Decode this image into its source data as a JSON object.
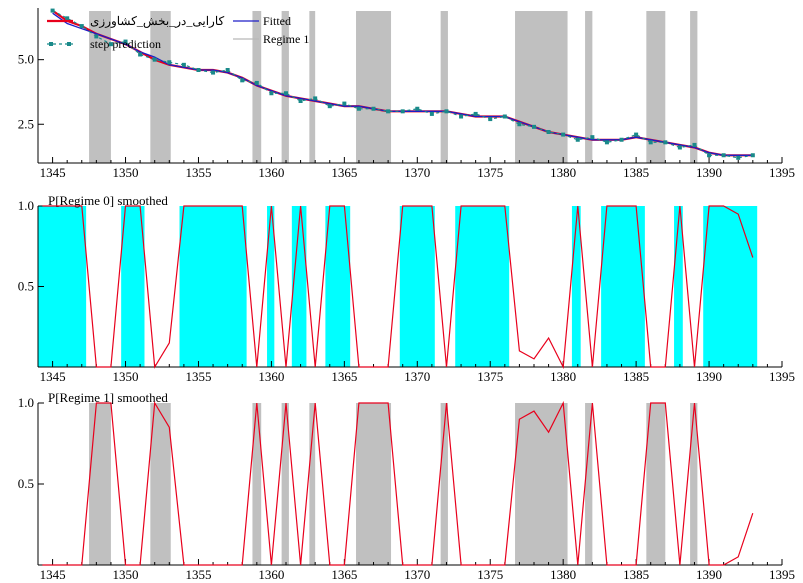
{
  "chart_data": [
    {
      "type": "line",
      "title": "",
      "xlabel": "",
      "ylabel": "",
      "xlim": [
        1344,
        1395
      ],
      "ylim": [
        1.0,
        7.0
      ],
      "x_ticks": [
        1345,
        1350,
        1355,
        1360,
        1365,
        1370,
        1375,
        1380,
        1385,
        1390,
        1395
      ],
      "y_ticks": [
        2.5,
        5.0
      ],
      "y_tick_labels": [
        "2.5",
        "5.0"
      ],
      "x_tick_labels": [
        "1345",
        "1350",
        "1355",
        "1360",
        "1365",
        "1370",
        "1375",
        "1380",
        "1385",
        "1390",
        "1395"
      ],
      "legend": [
        "کارایی_در_بخش_کشاورزی",
        "Fitted",
        "step prediction",
        "Regime 1"
      ],
      "colors": {
        "actual": "#e8001c",
        "fitted": "#1d1dc8",
        "step": "#1a8a8a",
        "regime": "#c0c0c0"
      },
      "regime1_intervals": [
        [
          1347.5,
          1349
        ],
        [
          1351.7,
          1353.1
        ],
        [
          1358.7,
          1359.3
        ],
        [
          1360.7,
          1361.2
        ],
        [
          1362.6,
          1363
        ],
        [
          1365.8,
          1368.2
        ],
        [
          1371.6,
          1372.1
        ],
        [
          1376.7,
          1380.3
        ],
        [
          1381.5,
          1382
        ],
        [
          1385.7,
          1387
        ],
        [
          1388.7,
          1389.2
        ]
      ],
      "series": [
        {
          "name": "کارایی_در_بخش_کشاورزی",
          "x": [
            1345,
            1346,
            1347,
            1348,
            1349,
            1350,
            1351,
            1352,
            1353,
            1354,
            1355,
            1356,
            1357,
            1358,
            1359,
            1360,
            1361,
            1362,
            1363,
            1364,
            1365,
            1366,
            1367,
            1368,
            1369,
            1370,
            1371,
            1372,
            1373,
            1374,
            1375,
            1376,
            1377,
            1378,
            1379,
            1380,
            1381,
            1382,
            1383,
            1384,
            1385,
            1386,
            1387,
            1388,
            1389,
            1390,
            1391,
            1392,
            1393
          ],
          "y": [
            6.9,
            6.5,
            6.3,
            6.0,
            5.8,
            5.6,
            5.3,
            5.0,
            4.8,
            4.7,
            4.6,
            4.6,
            4.5,
            4.3,
            4.0,
            3.8,
            3.6,
            3.5,
            3.4,
            3.3,
            3.2,
            3.2,
            3.1,
            3.0,
            3.0,
            3.0,
            3.0,
            3.0,
            2.9,
            2.8,
            2.8,
            2.8,
            2.6,
            2.4,
            2.2,
            2.1,
            2.0,
            1.9,
            1.9,
            1.9,
            2.0,
            1.9,
            1.8,
            1.7,
            1.6,
            1.4,
            1.3,
            1.3,
            1.3
          ]
        },
        {
          "name": "Fitted",
          "x": [
            1345,
            1346,
            1347,
            1348,
            1349,
            1350,
            1351,
            1352,
            1353,
            1354,
            1355,
            1356,
            1357,
            1358,
            1359,
            1360,
            1361,
            1362,
            1363,
            1364,
            1365,
            1366,
            1367,
            1368,
            1369,
            1370,
            1371,
            1372,
            1373,
            1374,
            1375,
            1376,
            1377,
            1378,
            1379,
            1380,
            1381,
            1382,
            1383,
            1384,
            1385,
            1386,
            1387,
            1388,
            1389,
            1390,
            1391,
            1392,
            1393
          ],
          "y": [
            6.8,
            6.4,
            6.2,
            6.0,
            5.8,
            5.6,
            5.3,
            5.1,
            4.8,
            4.7,
            4.6,
            4.6,
            4.5,
            4.3,
            4.0,
            3.8,
            3.6,
            3.5,
            3.4,
            3.3,
            3.2,
            3.2,
            3.1,
            3.0,
            3.0,
            3.0,
            3.0,
            3.0,
            2.9,
            2.8,
            2.8,
            2.8,
            2.6,
            2.4,
            2.2,
            2.1,
            2.0,
            1.9,
            1.9,
            1.9,
            2.0,
            1.9,
            1.8,
            1.7,
            1.6,
            1.4,
            1.3,
            1.3,
            1.3
          ]
        },
        {
          "name": "step prediction",
          "x": [
            1345,
            1346,
            1347,
            1348,
            1349,
            1350,
            1351,
            1352,
            1353,
            1354,
            1355,
            1356,
            1357,
            1358,
            1359,
            1360,
            1361,
            1362,
            1363,
            1364,
            1365,
            1366,
            1367,
            1368,
            1369,
            1370,
            1371,
            1372,
            1373,
            1374,
            1375,
            1376,
            1377,
            1378,
            1379,
            1380,
            1381,
            1382,
            1383,
            1384,
            1385,
            1386,
            1387,
            1388,
            1389,
            1390,
            1391,
            1392,
            1393
          ],
          "y": [
            6.9,
            6.6,
            6.3,
            5.9,
            5.6,
            5.7,
            5.2,
            5.0,
            4.9,
            4.8,
            4.6,
            4.5,
            4.6,
            4.2,
            4.1,
            3.7,
            3.7,
            3.4,
            3.5,
            3.2,
            3.3,
            3.1,
            3.1,
            3.0,
            3.0,
            3.1,
            2.9,
            3.0,
            2.8,
            2.9,
            2.7,
            2.8,
            2.5,
            2.4,
            2.2,
            2.1,
            1.9,
            2.0,
            1.8,
            1.9,
            2.1,
            1.8,
            1.8,
            1.6,
            1.7,
            1.3,
            1.3,
            1.2,
            1.3
          ]
        }
      ]
    },
    {
      "type": "line",
      "title": "P[Regime 0] smoothed",
      "xlabel": "",
      "ylabel": "",
      "xlim": [
        1344,
        1395
      ],
      "ylim": [
        0,
        1
      ],
      "x_ticks": [
        1345,
        1350,
        1355,
        1360,
        1365,
        1370,
        1375,
        1380,
        1385,
        1390,
        1395
      ],
      "x_tick_labels": [
        "1345",
        "1350",
        "1355",
        "1360",
        "1365",
        "1370",
        "1375",
        "1380",
        "1385",
        "1390",
        "1395"
      ],
      "y_ticks": [
        0.5,
        1.0
      ],
      "y_tick_labels": [
        "0.5",
        "1.0"
      ],
      "colors": {
        "fill": "#00ffff",
        "line": "#e8001c"
      },
      "regime0_intervals": [
        [
          1344,
          1347.3
        ],
        [
          1349.7,
          1351.3
        ],
        [
          1353.7,
          1358.3
        ],
        [
          1359.7,
          1360.2
        ],
        [
          1361.4,
          1362.4
        ],
        [
          1363.7,
          1365.4
        ],
        [
          1368.8,
          1371.2
        ],
        [
          1372.6,
          1376.3
        ],
        [
          1380.6,
          1381.2
        ],
        [
          1382.6,
          1385.6
        ],
        [
          1387.6,
          1388.2
        ],
        [
          1389.6,
          1393.3
        ]
      ],
      "series": [
        {
          "name": "P[Regime 0] smoothed",
          "x": [
            1344.3,
            1347,
            1348,
            1349,
            1350,
            1351,
            1352,
            1353,
            1354,
            1355,
            1356,
            1357,
            1358,
            1359,
            1360,
            1361,
            1362,
            1363,
            1364,
            1365,
            1366,
            1367,
            1368,
            1369,
            1370,
            1371,
            1372,
            1373,
            1374,
            1375,
            1376,
            1377,
            1378,
            1379,
            1380,
            1381,
            1382,
            1383,
            1384,
            1385,
            1386,
            1387,
            1388,
            1389,
            1390,
            1391,
            1392,
            1393
          ],
          "y": [
            1.0,
            1.0,
            0.0,
            0.0,
            1.0,
            1.0,
            0.0,
            0.15,
            1.0,
            1.0,
            1.0,
            1.0,
            1.0,
            0.0,
            1.0,
            0.0,
            1.0,
            0.0,
            1.0,
            1.0,
            0.0,
            0.0,
            0.0,
            1.0,
            1.0,
            1.0,
            0.0,
            1.0,
            1.0,
            1.0,
            1.0,
            0.1,
            0.05,
            0.18,
            0.0,
            1.0,
            0.0,
            1.0,
            1.0,
            1.0,
            0.0,
            0.0,
            1.0,
            0.0,
            1.0,
            1.0,
            0.95,
            0.68
          ]
        }
      ]
    },
    {
      "type": "line",
      "title": "P[Regime 1] smoothed",
      "xlabel": "",
      "ylabel": "",
      "xlim": [
        1344,
        1395
      ],
      "ylim": [
        0,
        1
      ],
      "x_ticks": [
        1345,
        1350,
        1355,
        1360,
        1365,
        1370,
        1375,
        1380,
        1385,
        1390,
        1395
      ],
      "x_tick_labels": [
        "1345",
        "1350",
        "1355",
        "1360",
        "1365",
        "1370",
        "1375",
        "1380",
        "1385",
        "1390",
        "1395"
      ],
      "y_ticks": [
        0.5,
        1.0
      ],
      "y_tick_labels": [
        "0.5",
        "1.0"
      ],
      "colors": {
        "fill": "#c0c0c0",
        "line": "#e8001c"
      },
      "regime1_intervals": [
        [
          1347.5,
          1349
        ],
        [
          1351.7,
          1353.1
        ],
        [
          1358.7,
          1359.3
        ],
        [
          1360.7,
          1361.2
        ],
        [
          1362.6,
          1363
        ],
        [
          1365.8,
          1368.2
        ],
        [
          1371.6,
          1372.1
        ],
        [
          1376.7,
          1380.3
        ],
        [
          1381.5,
          1382
        ],
        [
          1385.7,
          1387
        ],
        [
          1388.7,
          1389.2
        ]
      ],
      "series": [
        {
          "name": "P[Regime 1] smoothed",
          "x": [
            1344.3,
            1347,
            1348,
            1349,
            1350,
            1351,
            1352,
            1353,
            1354,
            1355,
            1356,
            1357,
            1358,
            1359,
            1360,
            1361,
            1362,
            1363,
            1364,
            1365,
            1366,
            1367,
            1368,
            1369,
            1370,
            1371,
            1372,
            1373,
            1374,
            1375,
            1376,
            1377,
            1378,
            1379,
            1380,
            1381,
            1382,
            1383,
            1384,
            1385,
            1386,
            1387,
            1388,
            1389,
            1390,
            1391,
            1392,
            1393
          ],
          "y": [
            0.0,
            0.0,
            1.0,
            1.0,
            0.0,
            0.0,
            1.0,
            0.85,
            0.0,
            0.0,
            0.0,
            0.0,
            0.0,
            1.0,
            0.0,
            1.0,
            0.0,
            1.0,
            0.0,
            0.0,
            1.0,
            1.0,
            1.0,
            0.0,
            0.0,
            0.0,
            1.0,
            0.0,
            0.0,
            0.0,
            0.0,
            0.9,
            0.95,
            0.82,
            1.0,
            0.0,
            1.0,
            0.0,
            0.0,
            0.0,
            1.0,
            1.0,
            0.0,
            1.0,
            0.0,
            0.0,
            0.05,
            0.32
          ]
        }
      ]
    }
  ]
}
